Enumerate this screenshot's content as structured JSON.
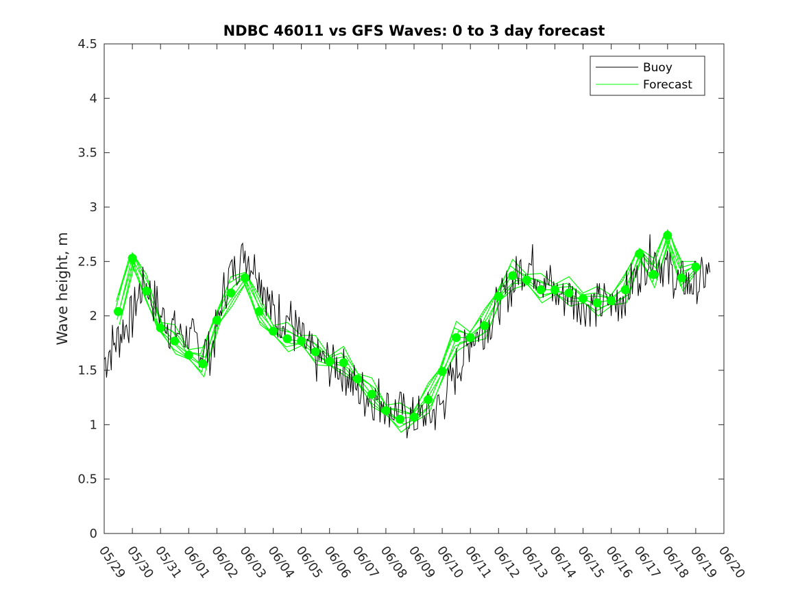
{
  "chart_data": {
    "type": "line",
    "title": "NDBC 46011 vs GFS Waves: 0 to 3 day forecast",
    "xlabel": "",
    "ylabel": "Wave height, m",
    "ylim": [
      0,
      4.5
    ],
    "yticks": [
      "0",
      "0.5",
      "1",
      "1.5",
      "2",
      "2.5",
      "3",
      "3.5",
      "4",
      "4.5"
    ],
    "xlim": [
      "05/29",
      "06/20"
    ],
    "xticks": [
      "05/29",
      "05/30",
      "05/31",
      "06/01",
      "06/02",
      "06/03",
      "06/04",
      "06/05",
      "06/06",
      "06/07",
      "06/08",
      "06/09",
      "06/10",
      "06/11",
      "06/12",
      "06/13",
      "06/14",
      "06/15",
      "06/16",
      "06/17",
      "06/18",
      "06/19",
      "06/20"
    ],
    "grid": false,
    "legend": {
      "position": "top-right",
      "entries": [
        "Buoy",
        "Forecast"
      ]
    },
    "colors": {
      "buoy": "#000000",
      "forecast": "#00ff00"
    },
    "series": [
      {
        "name": "Buoy",
        "x": [
          "05/29 00:00",
          "05/29 12:00",
          "05/30 00:00",
          "05/30 06:00",
          "05/30 12:00",
          "05/31 00:00",
          "05/31 12:00",
          "06/01 00:00",
          "06/01 12:00",
          "06/01 18:00",
          "06/02 00:00",
          "06/02 06:00",
          "06/02 12:00",
          "06/03 00:00",
          "06/03 12:00",
          "06/04 00:00",
          "06/04 12:00",
          "06/05 00:00",
          "06/05 12:00",
          "06/06 00:00",
          "06/06 12:00",
          "06/07 00:00",
          "06/07 12:00",
          "06/08 00:00",
          "06/08 12:00",
          "06/09 00:00",
          "06/09 12:00",
          "06/10 00:00",
          "06/10 12:00",
          "06/11 00:00",
          "06/11 12:00",
          "06/12 00:00",
          "06/12 12:00",
          "06/13 00:00",
          "06/13 12:00",
          "06/14 00:00",
          "06/14 12:00",
          "06/15 00:00",
          "06/15 12:00",
          "06/16 00:00",
          "06/16 12:00",
          "06/17 00:00",
          "06/17 12:00",
          "06/18 00:00",
          "06/18 12:00",
          "06/19 00:00",
          "06/19 12:00"
        ],
        "values": [
          1.6,
          1.8,
          2.0,
          2.2,
          2.3,
          2.0,
          1.85,
          1.8,
          1.7,
          1.65,
          1.9,
          2.2,
          2.4,
          2.6,
          2.4,
          2.0,
          2.0,
          1.75,
          1.6,
          1.55,
          1.5,
          1.3,
          1.25,
          1.2,
          1.1,
          1.05,
          1.1,
          1.2,
          1.5,
          1.8,
          1.9,
          2.1,
          2.3,
          2.5,
          2.4,
          2.2,
          2.2,
          2.1,
          2.1,
          2.1,
          2.2,
          2.4,
          2.6,
          2.4,
          2.3,
          2.3,
          2.4
        ]
      },
      {
        "name": "Forecast",
        "x": [
          "05/29 12:00",
          "05/30 00:00",
          "05/30 12:00",
          "05/31 00:00",
          "05/31 12:00",
          "06/01 00:00",
          "06/01 12:00",
          "06/02 00:00",
          "06/02 12:00",
          "06/03 00:00",
          "06/03 12:00",
          "06/04 00:00",
          "06/04 12:00",
          "06/05 00:00",
          "06/05 12:00",
          "06/06 00:00",
          "06/06 12:00",
          "06/07 00:00",
          "06/07 12:00",
          "06/08 00:00",
          "06/08 12:00",
          "06/09 00:00",
          "06/09 12:00",
          "06/10 00:00",
          "06/10 12:00",
          "06/11 00:00",
          "06/11 12:00",
          "06/12 00:00",
          "06/12 12:00",
          "06/13 00:00",
          "06/13 12:00",
          "06/14 00:00",
          "06/14 12:00",
          "06/15 00:00",
          "06/15 12:00",
          "06/16 00:00",
          "06/16 12:00",
          "06/17 00:00",
          "06/17 12:00",
          "06/18 00:00",
          "06/18 12:00",
          "06/19 00:00"
        ],
        "values": [
          2.04,
          2.53,
          2.23,
          1.89,
          1.77,
          1.64,
          1.56,
          1.96,
          2.21,
          2.35,
          2.04,
          1.86,
          1.79,
          1.77,
          1.67,
          1.58,
          1.57,
          1.42,
          1.28,
          1.13,
          1.05,
          1.07,
          1.23,
          1.49,
          1.8,
          1.8,
          1.91,
          2.18,
          2.37,
          2.33,
          2.24,
          2.24,
          2.21,
          2.16,
          2.12,
          2.14,
          2.24,
          2.57,
          2.38,
          2.74,
          2.35,
          2.45
        ]
      }
    ]
  }
}
